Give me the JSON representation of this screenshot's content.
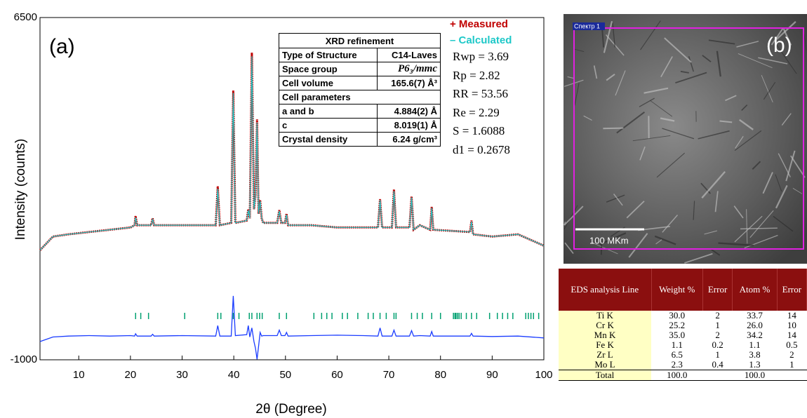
{
  "chart_data": {
    "type": "line",
    "panel_label": "(a)",
    "x_label": "2θ (Degree)",
    "y_label": "Intensity (counts)",
    "xlim": [
      2.5,
      100
    ],
    "ylim": [
      -1000,
      6500
    ],
    "xticks": [
      10,
      20,
      30,
      40,
      50,
      60,
      70,
      80,
      90,
      100
    ],
    "yticks": [
      -1000,
      6500
    ],
    "x": [
      2.5,
      5,
      8,
      12,
      16,
      20,
      20.8,
      21,
      21.3,
      24,
      24.3,
      24.6,
      30,
      36.5,
      36.9,
      37.3,
      39.5,
      39.9,
      40.3,
      42.5,
      42.8,
      43.1,
      43.5,
      43.9,
      44.2,
      44.5,
      44.8,
      45.1,
      45.4,
      45.7,
      48.4,
      48.8,
      49.2,
      49.9,
      50.2,
      50.5,
      55,
      60,
      65,
      67.9,
      68.3,
      68.7,
      70.6,
      71,
      71.4,
      74,
      74.4,
      74.8,
      76,
      78,
      78.3,
      78.6,
      85.7,
      86,
      86.3,
      90,
      95,
      100
    ],
    "series": [
      {
        "name": "+ Measured",
        "color": "#c00000",
        "values": [
          1400,
          1700,
          1750,
          1800,
          1850,
          1900,
          1950,
          2150,
          1950,
          1950,
          2100,
          1950,
          1950,
          1950,
          2800,
          1950,
          2000,
          4900,
          2000,
          2050,
          2300,
          2100,
          5730,
          2300,
          2600,
          4270,
          2200,
          2500,
          2100,
          2000,
          2000,
          2280,
          2000,
          2000,
          2200,
          1950,
          1950,
          1900,
          1900,
          1900,
          2520,
          1900,
          1900,
          2730,
          1900,
          1900,
          2580,
          1850,
          1950,
          1850,
          2350,
          1850,
          1800,
          2050,
          1750,
          1700,
          1750,
          1500
        ]
      },
      {
        "name": "– Calculated",
        "color": "#1ec8c8",
        "values": [
          1400,
          1700,
          1750,
          1800,
          1850,
          1900,
          1950,
          2120,
          1950,
          1950,
          2080,
          1950,
          1950,
          1950,
          2750,
          1950,
          2000,
          4850,
          2000,
          2050,
          2280,
          2100,
          5650,
          2300,
          2580,
          4200,
          2200,
          2480,
          2100,
          2000,
          2000,
          2260,
          2000,
          2000,
          2180,
          1950,
          1950,
          1900,
          1900,
          1900,
          2500,
          1900,
          1900,
          2700,
          1900,
          1900,
          2560,
          1850,
          1950,
          1850,
          2330,
          1850,
          1800,
          2030,
          1750,
          1700,
          1750,
          1500
        ]
      },
      {
        "color": "#1a3cff",
        "values": [
          -600,
          -500,
          -480,
          -470,
          -480,
          -470,
          -480,
          -430,
          -480,
          -480,
          -440,
          -480,
          -470,
          -480,
          -250,
          -480,
          -480,
          400,
          -470,
          -450,
          -250,
          -500,
          -300,
          -600,
          -750,
          -990,
          -700,
          -400,
          -480,
          -470,
          -470,
          -350,
          -470,
          -470,
          -400,
          -480,
          -470,
          -460,
          -470,
          -480,
          -300,
          -480,
          -480,
          -350,
          -480,
          -480,
          -360,
          -480,
          -470,
          -480,
          -380,
          -480,
          -480,
          -420,
          -480,
          -490,
          -480,
          -520
        ]
      }
    ],
    "bragg_color": "#00a070",
    "bragg_positions": [
      21,
      22,
      23.5,
      30.5,
      36.9,
      37.5,
      39.9,
      41,
      43,
      43.5,
      44.5,
      45,
      45.5,
      48.8,
      50.2,
      55.5,
      57,
      58,
      59,
      61,
      62,
      64,
      66,
      67,
      68.3,
      69.5,
      71,
      71.4,
      74.4,
      75.5,
      76.5,
      78.3,
      80,
      82.5,
      82.8,
      83,
      83.3,
      83.6,
      84,
      85,
      86,
      87,
      89.5,
      91,
      92,
      93,
      94,
      96.5,
      97,
      97.5,
      98,
      99
    ],
    "refinement": {
      "title": "XRD refinement",
      "rows": [
        [
          "Type of Structure",
          "C14-Laves"
        ],
        [
          "Space group",
          "P6₃/mmc"
        ],
        [
          "Cell volume",
          "165.6(7) Å³"
        ],
        [
          "Cell parameters"
        ],
        [
          "a and b",
          "4.884(2) Å"
        ],
        [
          "c",
          "8.019(1) Å"
        ],
        [
          "Crystal density",
          "6.24 g/cm³"
        ]
      ]
    },
    "statistics": [
      "Rwp = 3.69",
      "Rp = 2.82",
      "RR = 53.56",
      "Re = 2.29",
      "S = 1.6088",
      "d1 = 0.2678"
    ]
  },
  "panel_b": {
    "label": "(b)",
    "spectrum_label": "Спектр 1",
    "scale_bar": "100 MKm"
  },
  "eds_table": {
    "header": [
      "EDS analysis Line",
      "Weight %",
      "Error",
      "Atom %",
      "Error"
    ],
    "rows": [
      [
        "Ti K",
        "30.0",
        "2",
        "33.7",
        "14"
      ],
      [
        "Cr K",
        "25.2",
        "1",
        "26.0",
        "10"
      ],
      [
        "Mn K",
        "35.0",
        "2",
        "34.2",
        "14"
      ],
      [
        "Fe K",
        "1.1",
        "0.2",
        "1.1",
        "0.5"
      ],
      [
        "Zr L",
        "6.5",
        "1",
        "3.8",
        "2"
      ],
      [
        "Mo L",
        "2.3",
        "0.4",
        "1.3",
        "1"
      ],
      [
        "Total",
        "100.0",
        "",
        "100.0",
        ""
      ]
    ]
  }
}
